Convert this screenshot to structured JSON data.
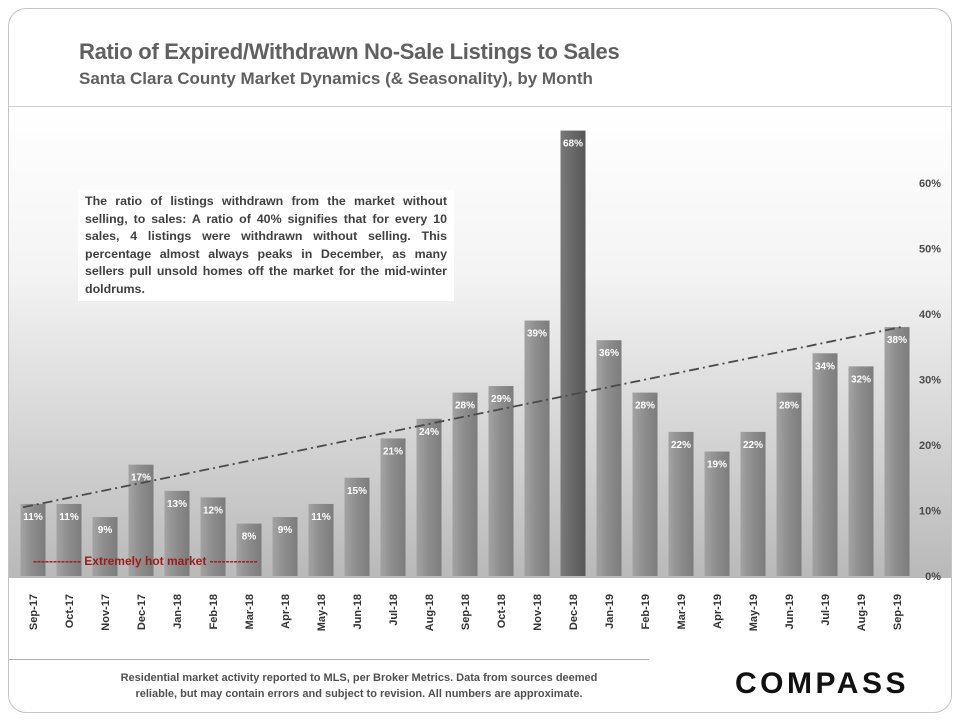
{
  "header": {
    "title": "Ratio of Expired/Withdrawn No-Sale Listings to Sales",
    "subtitle": "Santa Clara County Market Dynamics (& Seasonality), by Month"
  },
  "note_text": "The ratio of listings withdrawn from the market without selling, to sales: A ratio of 40% signifies that for every 10 sales, 4 listings were withdrawn without selling. This percentage almost always peaks in December, as many sellers pull unsold homes off the market for the mid-winter doldrums.",
  "footer": {
    "line1": "Residential market activity reported to MLS, per Broker Metrics. Data from sources deemed",
    "line2": "reliable, but may contain errors and subject to revision. All numbers are approximate.",
    "logo": "COMPASS"
  },
  "colors": {
    "bar": "#8c8c8c",
    "bar_peak": "#6e6e6e",
    "trend": "#4a4a4a",
    "annotation": "#9b1c1c"
  },
  "chart_data": {
    "type": "bar",
    "title": "Ratio of Expired/Withdrawn No-Sale Listings to Sales",
    "subtitle": "Santa Clara County Market Dynamics (& Seasonality), by Month",
    "categories": [
      "Sep-17",
      "Oct-17",
      "Nov-17",
      "Dec-17",
      "Jan-18",
      "Feb-18",
      "Mar-18",
      "Apr-18",
      "May-18",
      "Jun-18",
      "Jul-18",
      "Aug-18",
      "Sep-18",
      "Oct-18",
      "Nov-18",
      "Dec-18",
      "Jan-19",
      "Feb-19",
      "Mar-19",
      "Apr-19",
      "May-19",
      "Jun-19",
      "Jul-19",
      "Aug-19",
      "Sep-19"
    ],
    "values": [
      11,
      11,
      9,
      17,
      13,
      12,
      8,
      9,
      11,
      15,
      21,
      24,
      28,
      29,
      39,
      68,
      36,
      28,
      22,
      19,
      22,
      28,
      34,
      32,
      38
    ],
    "data_labels": [
      "11%",
      "11%",
      "9%",
      "17%",
      "13%",
      "12%",
      "8%",
      "9%",
      "11%",
      "15%",
      "21%",
      "24%",
      "28%",
      "29%",
      "39%",
      "68%",
      "36%",
      "28%",
      "22%",
      "19%",
      "22%",
      "28%",
      "34%",
      "32%",
      "38%"
    ],
    "peak_index": 15,
    "yaxis": {
      "position": "right",
      "ticks": [
        0,
        10,
        20,
        30,
        40,
        50,
        60
      ],
      "tick_labels": [
        "0%",
        "10%",
        "20%",
        "30%",
        "40%",
        "50%",
        "60%"
      ],
      "ylim": [
        0,
        70
      ]
    },
    "trendline": {
      "style": "dash-dot",
      "start_value": 10.5,
      "end_value": 38
    },
    "annotation": {
      "text": "Extremely hot market",
      "prefix": "------------",
      "suffix": "------------"
    },
    "xlabel": "",
    "ylabel": ""
  }
}
